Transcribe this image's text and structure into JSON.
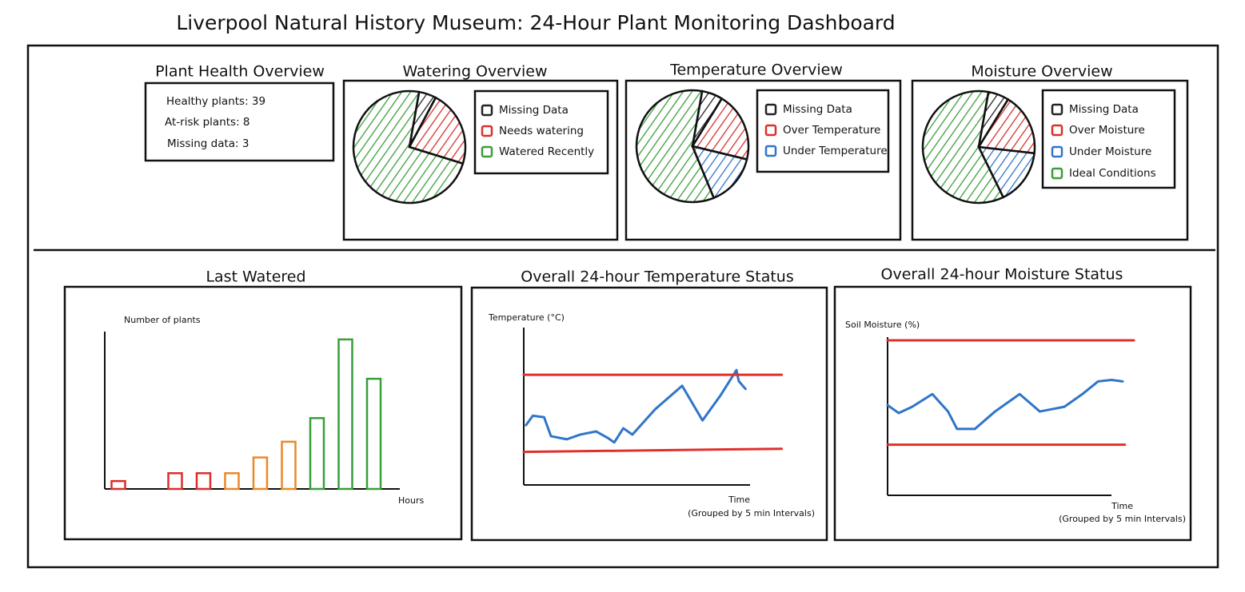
{
  "title": "Liverpool Natural History Museum: 24-Hour Plant Monitoring Dashboard",
  "health": {
    "title": "Plant Health Overview",
    "items": [
      "Healthy plants: 39",
      "At-risk plants: 8",
      "Missing data: 3"
    ]
  },
  "pies": [
    {
      "title": "Watering Overview",
      "slices": [
        {
          "name": "Missing Data",
          "color": "#222222",
          "value": 5
        },
        {
          "name": "Needs watering",
          "color": "#d9302c",
          "value": 22
        },
        {
          "name": "Watered Recently",
          "color": "#3a9e3a",
          "value": 73
        }
      ]
    },
    {
      "title": "Temperature Overview",
      "slices": [
        {
          "name": "Missing Data",
          "color": "#222222",
          "value": 6
        },
        {
          "name": "Over Temperature",
          "color": "#d9302c",
          "value": 20
        },
        {
          "name": "Under Temperature",
          "color": "#2f75c9",
          "value": 15
        },
        {
          "color": "#3a9e3a",
          "value": 59
        }
      ]
    },
    {
      "title": "Moisture Overview",
      "slices": [
        {
          "name": "Missing Data",
          "color": "#222222",
          "value": 6
        },
        {
          "name": "Over Moisture",
          "color": "#d9302c",
          "value": 18
        },
        {
          "name": "Under Moisture",
          "color": "#2f75c9",
          "value": 16
        },
        {
          "name": "Ideal Conditions",
          "color": "#3a9e3a",
          "value": 60
        }
      ]
    }
  ],
  "bar": {
    "title": "Last Watered",
    "y_label": "Number of plants",
    "x_label": "Hours",
    "ylim": [
      0,
      20
    ],
    "values": [
      1,
      null,
      2,
      2,
      2,
      4,
      6,
      9,
      19,
      14
    ],
    "colors": [
      "#d9302c",
      null,
      "#d9302c",
      "#d9302c",
      "#e8892a",
      "#e8892a",
      "#e8892a",
      "#3a9e3a",
      "#3a9e3a",
      "#3a9e3a"
    ]
  },
  "lines": [
    {
      "title": "Overall 24-hour Temperature Status",
      "y_label": "Temperature (°C)",
      "x_label": "Time",
      "x_note": "(Grouped by 5 min Intervals)",
      "xlim": [
        0,
        100
      ],
      "ylim": [
        0,
        100
      ],
      "series": [
        {
          "color": "#2f75c9",
          "x": [
            1,
            4,
            9,
            12,
            19,
            25,
            32,
            37,
            40,
            44,
            48,
            58,
            70,
            79,
            87,
            94,
            95,
            98
          ],
          "values": [
            38,
            44,
            43,
            31,
            29,
            32,
            34,
            30,
            27,
            36,
            32,
            48,
            63,
            41,
            57,
            73,
            66,
            61
          ]
        },
        {
          "color": "#e0302c",
          "x": [
            0,
            114
          ],
          "values": [
            70,
            70
          ]
        },
        {
          "color": "#e0302c",
          "x": [
            0,
            114
          ],
          "values": [
            21,
            23
          ]
        }
      ]
    },
    {
      "title": "Overall 24-hour Moisture Status",
      "y_label": "Soil Moisture (%)",
      "x_label": "Time",
      "x_note": "(Grouped by 5 min Intervals)",
      "xlim": [
        0,
        100
      ],
      "ylim": [
        0,
        100
      ],
      "series": [
        {
          "color": "#2f75c9",
          "x": [
            0,
            5,
            11,
            20,
            27,
            31,
            39,
            48,
            59,
            68,
            79,
            87,
            94,
            100,
            105
          ],
          "values": [
            57,
            52,
            56,
            64,
            53,
            42,
            42,
            53,
            64,
            53,
            56,
            64,
            72,
            73,
            72
          ]
        },
        {
          "color": "#e0302c",
          "x": [
            0,
            110
          ],
          "values": [
            98,
            98
          ]
        },
        {
          "color": "#e0302c",
          "x": [
            0,
            106
          ],
          "values": [
            32,
            32
          ]
        }
      ]
    }
  ]
}
